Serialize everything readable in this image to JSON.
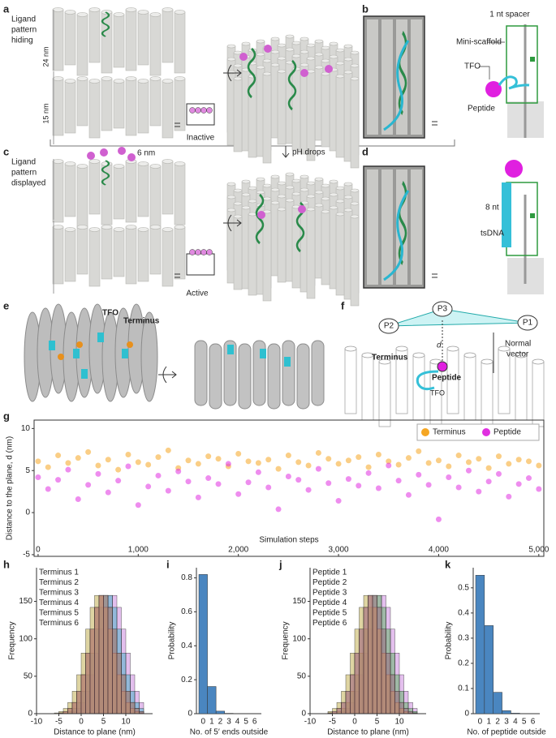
{
  "panels": {
    "a": {
      "label": "a",
      "title": [
        "Ligand",
        "pattern",
        "hiding"
      ],
      "height_top": "24 nm",
      "height_bottom": "15 nm",
      "state": "Inactive"
    },
    "b": {
      "label": "b",
      "spacer": "1 nt spacer",
      "scaffold": "Mini-scaffold",
      "tfo": "TFO",
      "peptide": "Peptide"
    },
    "c": {
      "label": "c",
      "title": [
        "Ligand",
        "pattern",
        "displayed"
      ],
      "height": "6 nm",
      "state": "Active",
      "trigger": "pH drops"
    },
    "d": {
      "label": "d",
      "spacer": "8 nt",
      "strand": "tsDNA"
    },
    "e": {
      "label": "e",
      "tfo": "TFO",
      "terminus": "Terminus"
    },
    "f": {
      "label": "f",
      "p1": "P1",
      "p2": "P2",
      "p3": "P3",
      "distance": "d",
      "terminus": "Terminus",
      "peptide": "Peptide",
      "normal": [
        "Normal",
        "vector"
      ],
      "tfo": "TFO"
    }
  },
  "chart_data": [
    {
      "type": "scatter",
      "label": "g",
      "x_label": "Simulation steps",
      "y_label": "Distance to the plane, d (nm)",
      "legend": "upper right",
      "x": [
        0,
        100,
        200,
        300,
        400,
        500,
        600,
        700,
        800,
        900,
        1000,
        1100,
        1200,
        1300,
        1400,
        1500,
        1600,
        1700,
        1800,
        1900,
        2000,
        2100,
        2200,
        2300,
        2400,
        2500,
        2600,
        2700,
        2800,
        2900,
        3000,
        3100,
        3200,
        3300,
        3400,
        3500,
        3600,
        3700,
        3800,
        3900,
        4000,
        4100,
        4200,
        4300,
        4400,
        4500,
        4600,
        4700,
        4800,
        4900,
        5000
      ],
      "series": [
        {
          "name": "Terminus",
          "color": "#f5a623",
          "values": [
            6.1,
            5.4,
            6.8,
            5.9,
            6.5,
            7.2,
            5.6,
            6.3,
            5.1,
            6.9,
            6.0,
            5.7,
            6.6,
            7.4,
            5.3,
            6.2,
            5.8,
            6.7,
            6.4,
            5.5,
            7.0,
            6.1,
            5.9,
            6.3,
            5.2,
            6.8,
            6.0,
            5.6,
            7.1,
            6.4,
            5.8,
            6.2,
            6.6,
            5.4,
            6.9,
            6.1,
            5.7,
            6.5,
            7.3,
            5.9,
            6.2,
            5.5,
            6.8,
            6.0,
            6.4,
            5.3,
            6.7,
            5.8,
            6.3,
            6.1,
            5.6
          ]
        },
        {
          "name": "Peptide",
          "color": "#e030e0",
          "values": [
            4.2,
            2.8,
            3.9,
            5.1,
            1.6,
            3.3,
            4.6,
            2.4,
            3.8,
            5.5,
            0.9,
            3.1,
            4.4,
            2.6,
            4.9,
            3.7,
            1.8,
            4.1,
            3.4,
            5.8,
            2.2,
            3.6,
            4.8,
            3.0,
            0.4,
            4.3,
            3.9,
            2.7,
            5.2,
            3.5,
            1.4,
            4.0,
            3.2,
            4.7,
            2.9,
            5.6,
            3.8,
            2.1,
            4.5,
            3.3,
            -0.8,
            4.2,
            3.0,
            5.0,
            2.5,
            3.7,
            4.6,
            1.9,
            3.4,
            4.1,
            2.8
          ]
        }
      ],
      "xlim": [
        -40,
        5050
      ],
      "xticks": [
        0,
        {
          "value": 1000,
          "label": "1,000"
        },
        {
          "value": 2000,
          "label": "2,000"
        },
        {
          "value": 3000,
          "label": "3,000"
        },
        {
          "value": 4000,
          "label": "4,000"
        },
        {
          "value": 5000,
          "label": "5,000"
        }
      ],
      "ylim": [
        -5.2,
        11
      ],
      "yticks": [
        -5,
        0,
        5,
        10
      ]
    },
    {
      "type": "histogram",
      "label": "h",
      "x_label": "Distance to plane (nm)",
      "y_label": "Frequency",
      "bins": [
        -6,
        -5,
        -4,
        -3,
        -2,
        -1,
        0,
        1,
        2,
        3,
        4,
        5,
        6,
        7,
        8,
        9,
        10,
        11,
        12,
        13,
        14
      ],
      "series": [
        {
          "name": "Terminus 1",
          "color": "#c070d8",
          "values": [
            0,
            0,
            0,
            1,
            3,
            7,
            15,
            30,
            52,
            81,
            113,
            142,
            158,
            158,
            142,
            113,
            81,
            52,
            30,
            15
          ]
        },
        {
          "name": "Terminus 2",
          "color": "#4a9ad8",
          "values": [
            0,
            1,
            3,
            7,
            15,
            30,
            52,
            81,
            113,
            142,
            158,
            158,
            142,
            113,
            81,
            52,
            30,
            15,
            7,
            3
          ]
        },
        {
          "name": "Terminus 3",
          "color": "#2fb0c4",
          "values": [
            0,
            0,
            1,
            3,
            7,
            15,
            30,
            52,
            81,
            113,
            142,
            158,
            158,
            142,
            113,
            81,
            52,
            30,
            15,
            7
          ]
        },
        {
          "name": "Terminus 4",
          "color": "#4caf50",
          "values": [
            0,
            1,
            3,
            7,
            15,
            30,
            52,
            81,
            113,
            142,
            158,
            158,
            142,
            113,
            81,
            52,
            30,
            15,
            7,
            3
          ]
        },
        {
          "name": "Terminus 5",
          "color": "#b5a030",
          "values": [
            1,
            3,
            7,
            15,
            30,
            52,
            81,
            113,
            142,
            158,
            158,
            142,
            113,
            81,
            52,
            30,
            15,
            7,
            3,
            1
          ]
        },
        {
          "name": "Terminus 6",
          "color": "#e8688a",
          "values": [
            0,
            1,
            3,
            7,
            15,
            30,
            52,
            81,
            113,
            142,
            158,
            158,
            142,
            113,
            81,
            52,
            30,
            15,
            7,
            3
          ]
        }
      ],
      "xlim": [
        -10,
        16
      ],
      "xticks": [
        -10,
        -5,
        0,
        5,
        10
      ],
      "ylim": [
        0,
        195
      ],
      "yticks": [
        0,
        50,
        100,
        150
      ]
    },
    {
      "type": "bar",
      "label": "i",
      "x_label": "No. of 5′ ends outside",
      "y_label": "Probability",
      "color": "#4a86c0",
      "categories": [
        "0",
        "1",
        "2",
        "3",
        "4",
        "5",
        "6"
      ],
      "values": [
        0.82,
        0.16,
        0.015,
        0.002,
        0,
        0,
        0
      ],
      "ylim": [
        0,
        0.86
      ],
      "yticks": [
        0,
        0.2,
        0.4,
        0.6,
        0.8
      ]
    },
    {
      "type": "histogram",
      "label": "j",
      "x_label": "Distance to plane (nm)",
      "y_label": "Frequency",
      "bins": [
        -6,
        -5,
        -4,
        -3,
        -2,
        -1,
        0,
        1,
        2,
        3,
        4,
        5,
        6,
        7,
        8,
        9,
        10,
        11,
        12,
        13,
        14
      ],
      "series": [
        {
          "name": "Peptide 1",
          "color": "#c070d8",
          "values": [
            0,
            0,
            1,
            3,
            7,
            15,
            30,
            52,
            81,
            113,
            142,
            158,
            158,
            142,
            113,
            81,
            52,
            30,
            15,
            7
          ]
        },
        {
          "name": "Peptide 2",
          "color": "#4a9ad8",
          "values": [
            1,
            3,
            7,
            15,
            30,
            52,
            81,
            113,
            142,
            158,
            158,
            142,
            113,
            81,
            52,
            30,
            15,
            7,
            3,
            1
          ]
        },
        {
          "name": "Peptide 3",
          "color": "#2fb0c4",
          "values": [
            1,
            3,
            7,
            15,
            30,
            52,
            81,
            113,
            142,
            158,
            158,
            142,
            113,
            81,
            52,
            30,
            15,
            7,
            3,
            1
          ]
        },
        {
          "name": "Peptide 4",
          "color": "#4caf50",
          "values": [
            0,
            1,
            3,
            7,
            15,
            30,
            52,
            81,
            113,
            142,
            158,
            158,
            142,
            113,
            81,
            52,
            30,
            15,
            7,
            3
          ]
        },
        {
          "name": "Peptide 5",
          "color": "#b5a030",
          "values": [
            3,
            7,
            15,
            30,
            52,
            81,
            113,
            142,
            158,
            158,
            142,
            113,
            81,
            52,
            30,
            15,
            7,
            3,
            1,
            0
          ]
        },
        {
          "name": "Peptide 6",
          "color": "#e8688a",
          "values": [
            1,
            3,
            7,
            15,
            30,
            52,
            81,
            113,
            142,
            158,
            158,
            142,
            113,
            81,
            52,
            30,
            15,
            7,
            3,
            1
          ]
        }
      ],
      "xlim": [
        -10,
        16
      ],
      "xticks": [
        -10,
        -5,
        0,
        5,
        10
      ],
      "ylim": [
        0,
        195
      ],
      "yticks": [
        0,
        50,
        100,
        150
      ]
    },
    {
      "type": "bar",
      "label": "k",
      "x_label": "No. of peptide outside",
      "y_label": "Probability",
      "color": "#4a86c0",
      "categories": [
        "0",
        "1",
        "2",
        "3",
        "4",
        "5",
        "6"
      ],
      "values": [
        0.55,
        0.35,
        0.085,
        0.012,
        0.002,
        0,
        0
      ],
      "ylim": [
        0,
        0.58
      ],
      "yticks": [
        0,
        0.1,
        0.2,
        0.3,
        0.4,
        0.5
      ]
    }
  ]
}
